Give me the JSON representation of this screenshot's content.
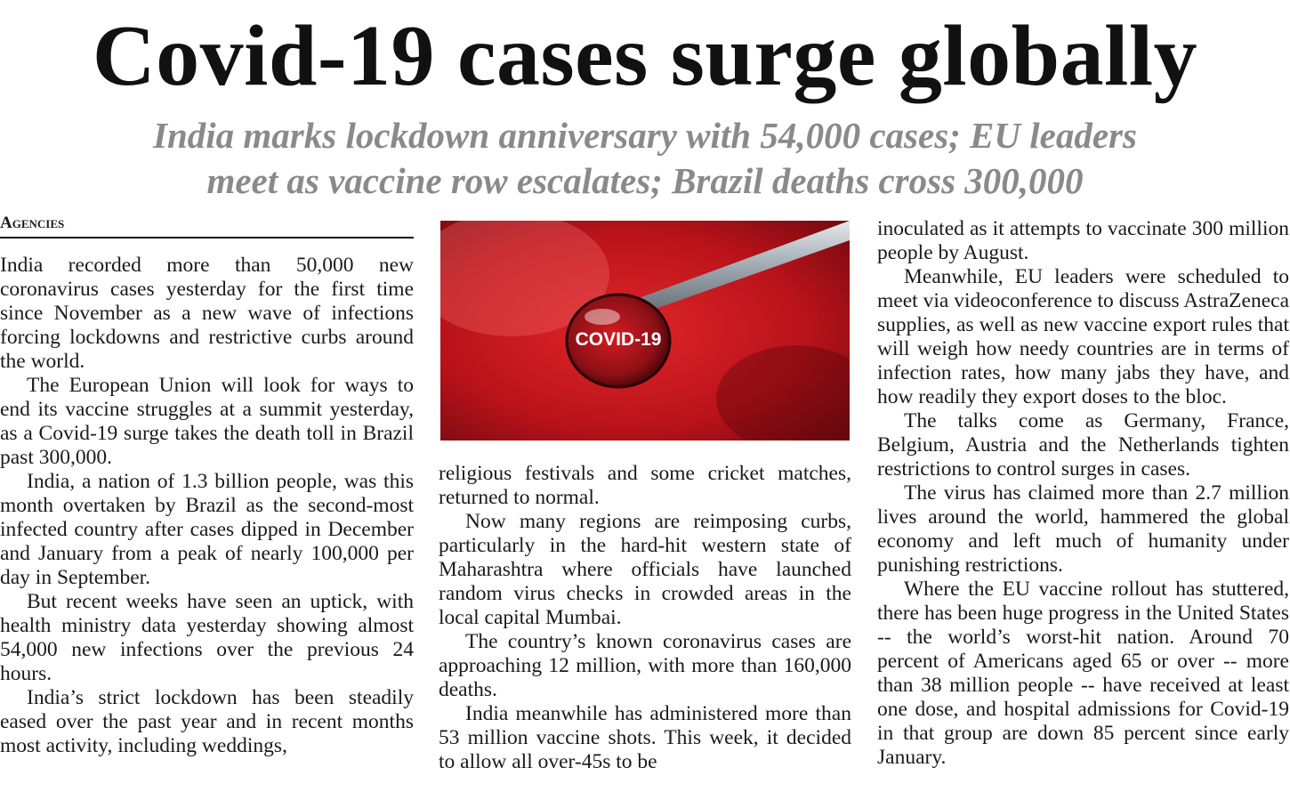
{
  "headline": "Covid-19 cases surge globally",
  "subheadline": {
    "line1": "India marks lockdown anniversary with 54,000 cases; EU leaders",
    "line2": "meet as vaccine row escalates; Brazil deaths cross 300,000"
  },
  "byline": "Agencies",
  "photo": {
    "drop_text": "COVID-19",
    "colors": {
      "background": "#c8161c",
      "needle": "#9aa3ab",
      "text": "#ffffff"
    }
  },
  "columns": {
    "col1": [
      "India recorded more than 50,000 new coronavirus cases yesterday for the first time since November as a new wave of infections forcing lockdowns and restrictive curbs around the world.",
      "The European Union will look for ways to end its vaccine struggles at a summit yesterday, as a Covid-19 surge takes the death toll in Brazil past 300,000.",
      "India, a nation of 1.3 billion people, was this month overtaken by Brazil as the second-most infected country after cases dipped in December and January from a peak of nearly 100,000 per day in September.",
      "But recent weeks have seen an uptick, with health ministry data yesterday showing almost 54,000 new infections over the previous 24 hours.",
      "India’s strict lockdown has been steadily eased over the past year and in recent months most activity, including weddings,"
    ],
    "col2": [
      "religious festivals and some cricket matches, returned to normal.",
      "Now many regions are reimposing curbs, particularly in the hard-hit western state of Maharashtra where officials have launched random virus checks in crowded areas in the local capital Mumbai.",
      "The country’s known coronavirus cases are approaching 12 million, with more than 160,000 deaths.",
      "India meanwhile has administered more than 53 million vaccine shots. This week, it decided to allow all over-45s to be"
    ],
    "col3": [
      "inoculated as it attempts to vaccinate 300 million people by August.",
      "Meanwhile, EU leaders were scheduled to meet via videoconference to discuss AstraZeneca supplies, as well as new vaccine export rules that will weigh how needy countries are in terms of infection rates, how many jabs they have, and how readily they export doses to the bloc.",
      "The talks come as Germany, France, Belgium, Austria and the Netherlands tighten restrictions to control surges in cases.",
      "The virus has claimed more than 2.7 million lives around the world, hammered the global economy and left much of humanity under punishing restrictions.",
      "Where the EU vaccine rollout has stuttered, there has been huge progress in the United States -- the world’s worst-hit nation. Around 70 percent of Americans aged 65 or over -- more than 38 million people -- have received at least one dose, and hospital admissions for Covid-19 in that group are down 85 percent since early January."
    ]
  }
}
